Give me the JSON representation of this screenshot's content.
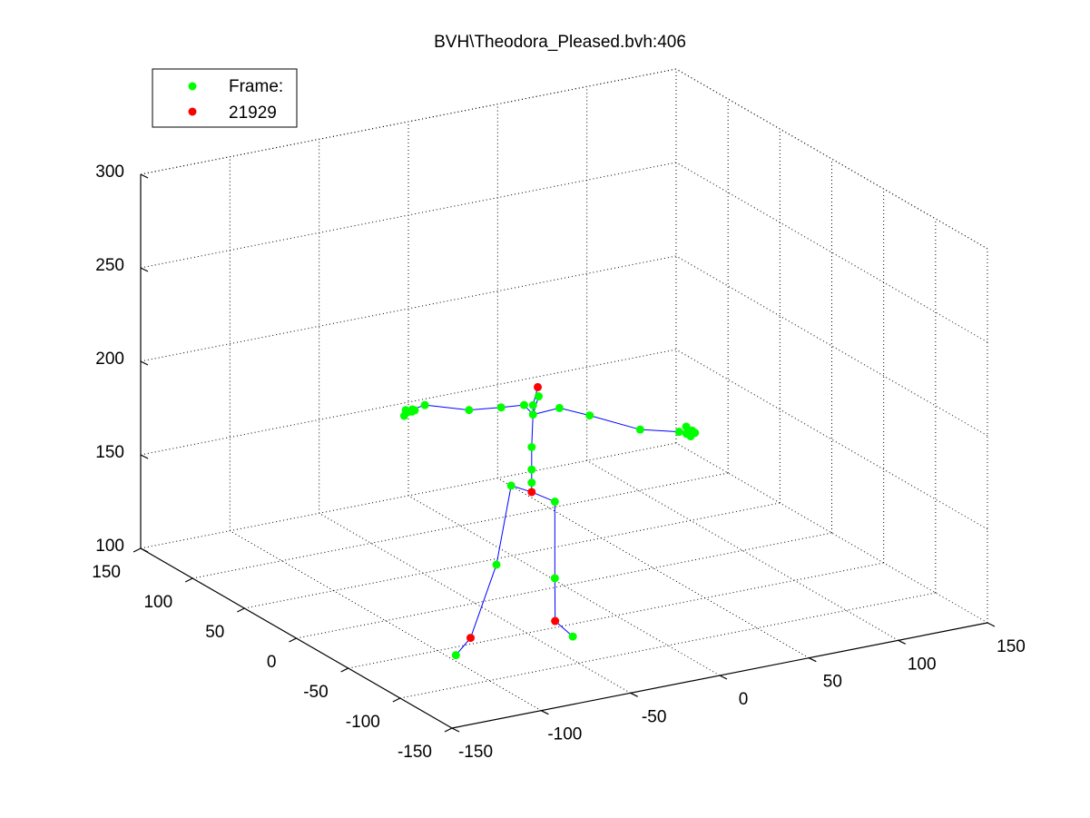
{
  "chart_data": {
    "type": "scatter",
    "projection": "3d",
    "title": "BVH\\Theodora_Pleased.bvh:406",
    "grid": true,
    "legend": {
      "placement": "top-left",
      "entries": [
        {
          "label": "Frame:",
          "color": "#00ff00"
        },
        {
          "label": "21929",
          "color": "#ff0000"
        }
      ]
    },
    "axes": {
      "x": {
        "lim": [
          -150,
          150
        ],
        "ticks": [
          -150,
          -100,
          -50,
          0,
          50,
          100,
          150
        ],
        "tick_labels": [
          "-150",
          "-100",
          "-50",
          "0",
          "50",
          "100",
          "150"
        ]
      },
      "y": {
        "lim": [
          -150,
          150
        ],
        "ticks": [
          -150,
          -100,
          -50,
          0,
          50,
          100,
          150
        ],
        "tick_labels": [
          "-150",
          "-100",
          "-50",
          "0",
          "50",
          "100",
          "150"
        ]
      },
      "z": {
        "lim": [
          100,
          300
        ],
        "ticks": [
          100,
          150,
          200,
          250,
          300
        ],
        "tick_labels": [
          "100",
          "150",
          "200",
          "250",
          "300"
        ]
      }
    },
    "colors": {
      "joint": "#00ff00",
      "keyjoint": "#ff0000",
      "bone": "#0000ff"
    },
    "joints": [
      {
        "id": "hips",
        "p": [
          -13.5,
          8,
          150
        ],
        "key": true
      },
      {
        "id": "spine1",
        "p": [
          -13.5,
          8,
          155
        ],
        "key": false
      },
      {
        "id": "spine2",
        "p": [
          -13.5,
          8,
          162
        ],
        "key": false
      },
      {
        "id": "spine3",
        "p": [
          -13.5,
          8,
          174
        ],
        "key": false
      },
      {
        "id": "neck",
        "p": [
          -11,
          11,
          190
        ],
        "key": false
      },
      {
        "id": "head",
        "p": [
          -11,
          11,
          195
        ],
        "key": false
      },
      {
        "id": "headtop",
        "p": [
          -9.5,
          9,
          205
        ],
        "key": true
      },
      {
        "id": "neck2",
        "p": [
          -9,
          9,
          200
        ],
        "key": false
      },
      {
        "id": "rcollar",
        "p": [
          -16,
          11,
          196
        ],
        "key": false
      },
      {
        "id": "rshoulder",
        "p": [
          -30,
          9,
          198
        ],
        "key": false
      },
      {
        "id": "relbow",
        "p": [
          -48,
          9,
          200
        ],
        "key": false
      },
      {
        "id": "rwrist",
        "p": [
          -71,
          12,
          206
        ],
        "key": false
      },
      {
        "id": "rhand1",
        "p": [
          -78,
          12,
          205
        ],
        "key": false
      },
      {
        "id": "rhand2",
        "p": [
          -80,
          15,
          204
        ],
        "key": false
      },
      {
        "id": "rhand3",
        "p": [
          -81,
          10,
          205
        ],
        "key": false
      },
      {
        "id": "rhand4",
        "p": [
          -79,
          8,
          206
        ],
        "key": false
      },
      {
        "id": "rhand5",
        "p": [
          -82,
          13,
          202
        ],
        "key": false
      },
      {
        "id": "rhand6",
        "p": [
          -77,
          14,
          203
        ],
        "key": false
      },
      {
        "id": "lcollar",
        "p": [
          -2,
          1,
          195
        ],
        "key": false
      },
      {
        "id": "lshoulder",
        "p": [
          12,
          -4,
          190
        ],
        "key": false
      },
      {
        "id": "lelbow",
        "p": [
          31,
          -20,
          184
        ],
        "key": false
      },
      {
        "id": "lwrist",
        "p": [
          47,
          -30,
          183
        ],
        "key": false
      },
      {
        "id": "lhand1",
        "p": [
          52,
          -34,
          184
        ],
        "key": false
      },
      {
        "id": "lhand2",
        "p": [
          50,
          -36,
          182
        ],
        "key": false
      },
      {
        "id": "lhand3",
        "p": [
          54,
          -33,
          182
        ],
        "key": false
      },
      {
        "id": "lhand4",
        "p": [
          51,
          -30,
          185
        ],
        "key": false
      },
      {
        "id": "lhand5",
        "p": [
          53,
          -35,
          183
        ],
        "key": false
      },
      {
        "id": "lhand6",
        "p": [
          50,
          -32,
          182
        ],
        "key": false
      },
      {
        "id": "rhip",
        "p": [
          -21.5,
          14,
          153
        ],
        "key": false
      },
      {
        "id": "rknee",
        "p": [
          -28,
          17,
          111
        ],
        "key": false
      },
      {
        "id": "rankle",
        "p": [
          -39,
          23,
          72
        ],
        "key": true
      },
      {
        "id": "rtoe",
        "p": [
          -45.5,
          26,
          63
        ],
        "key": false
      },
      {
        "id": "lhip",
        "p": [
          -4,
          2,
          145
        ],
        "key": false
      },
      {
        "id": "lknee",
        "p": [
          -4,
          2,
          104
        ],
        "key": false
      },
      {
        "id": "lankle",
        "p": [
          -5,
          0,
          82
        ],
        "key": true
      },
      {
        "id": "ltoe",
        "p": [
          2,
          -5,
          74
        ],
        "key": false
      }
    ],
    "bones": [
      [
        "hips",
        "spine1"
      ],
      [
        "spine1",
        "spine2"
      ],
      [
        "spine2",
        "spine3"
      ],
      [
        "spine3",
        "neck"
      ],
      [
        "neck",
        "head"
      ],
      [
        "head",
        "headtop"
      ],
      [
        "neck",
        "neck2"
      ],
      [
        "neck",
        "rcollar"
      ],
      [
        "rcollar",
        "rshoulder"
      ],
      [
        "rshoulder",
        "relbow"
      ],
      [
        "relbow",
        "rwrist"
      ],
      [
        "rwrist",
        "rhand1"
      ],
      [
        "rhand1",
        "rhand2"
      ],
      [
        "rhand1",
        "rhand3"
      ],
      [
        "rhand1",
        "rhand4"
      ],
      [
        "rhand1",
        "rhand5"
      ],
      [
        "rhand1",
        "rhand6"
      ],
      [
        "neck",
        "lcollar"
      ],
      [
        "lcollar",
        "lshoulder"
      ],
      [
        "lshoulder",
        "lelbow"
      ],
      [
        "lelbow",
        "lwrist"
      ],
      [
        "lwrist",
        "lhand1"
      ],
      [
        "lhand1",
        "lhand2"
      ],
      [
        "lhand1",
        "lhand3"
      ],
      [
        "lhand1",
        "lhand4"
      ],
      [
        "lhand1",
        "lhand5"
      ],
      [
        "lhand1",
        "lhand6"
      ],
      [
        "hips",
        "rhip"
      ],
      [
        "rhip",
        "rknee"
      ],
      [
        "rknee",
        "rankle"
      ],
      [
        "rankle",
        "rtoe"
      ],
      [
        "hips",
        "lhip"
      ],
      [
        "lhip",
        "lknee"
      ],
      [
        "lknee",
        "lankle"
      ],
      [
        "lankle",
        "ltoe"
      ]
    ]
  }
}
